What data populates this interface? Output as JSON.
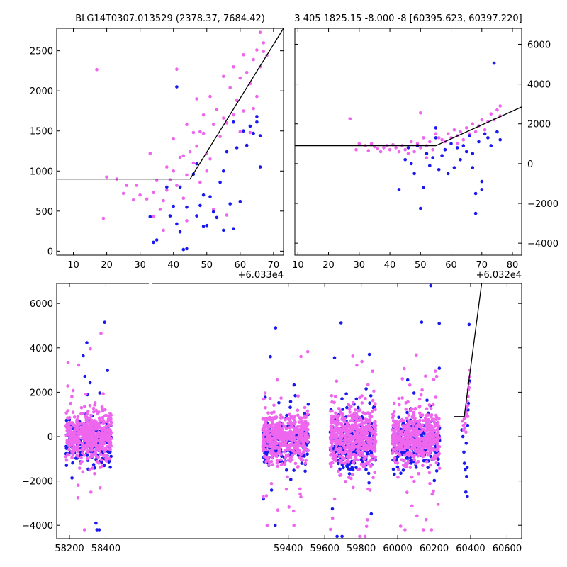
{
  "colors": {
    "pink": "#ee66ee",
    "blue": "#1a1aee",
    "fit": "#000000"
  },
  "chart_data": [
    {
      "id": "panel-a",
      "type": "scatter",
      "title": "BLG14T0307.013529 (2378.37, 7684.42)",
      "xlim": [
        5,
        73
      ],
      "ylim": [
        -50,
        2780
      ],
      "x_offset_label": "+6.033e4",
      "xticks": [
        10,
        20,
        30,
        40,
        50,
        60,
        70
      ],
      "yticks": [
        0,
        500,
        1000,
        1500,
        2000,
        2500
      ],
      "yaxis_side": "left",
      "fit_line": [
        [
          5,
          900
        ],
        [
          45,
          900
        ],
        [
          73,
          2780
        ]
      ],
      "series": [
        {
          "color_key": "pink",
          "points": [
            [
              17,
              2265
            ],
            [
              19,
              410
            ],
            [
              20,
              925
            ],
            [
              23,
              900
            ],
            [
              25,
              720
            ],
            [
              26,
              820
            ],
            [
              28,
              640
            ],
            [
              29,
              820
            ],
            [
              30,
              700
            ],
            [
              32,
              650
            ],
            [
              33,
              1220
            ],
            [
              34,
              730
            ],
            [
              35,
              880
            ],
            [
              36,
              520
            ],
            [
              37,
              630
            ],
            [
              38,
              1050
            ],
            [
              38,
              760
            ],
            [
              39,
              890
            ],
            [
              40,
              1000
            ],
            [
              40,
              1400
            ],
            [
              41,
              2270
            ],
            [
              41,
              820
            ],
            [
              42,
              1170
            ],
            [
              43,
              660
            ],
            [
              43,
              1190
            ],
            [
              44,
              950
            ],
            [
              44,
              1580
            ],
            [
              45,
              1240
            ],
            [
              46,
              1480
            ],
            [
              46,
              1100
            ],
            [
              47,
              1900
            ],
            [
              47,
              1310
            ],
            [
              48,
              1490
            ],
            [
              48,
              860
            ],
            [
              49,
              1700
            ],
            [
              49,
              1470
            ],
            [
              50,
              1220
            ],
            [
              50,
              1000
            ],
            [
              51,
              1930
            ],
            [
              51,
              1150
            ],
            [
              52,
              1580
            ],
            [
              53,
              1770
            ],
            [
              54,
              1430
            ],
            [
              55,
              1660
            ],
            [
              55,
              2180
            ],
            [
              56,
              1600
            ],
            [
              57,
              2040
            ],
            [
              58,
              2300
            ],
            [
              58,
              1700
            ],
            [
              59,
              1880
            ],
            [
              60,
              2160
            ],
            [
              60,
              1490
            ],
            [
              61,
              2450
            ],
            [
              61,
              1750
            ],
            [
              62,
              2230
            ],
            [
              63,
              2090
            ],
            [
              63,
              1480
            ],
            [
              64,
              2390
            ],
            [
              64,
              1780
            ],
            [
              65,
              2510
            ],
            [
              66,
              2300
            ],
            [
              66,
              2730
            ],
            [
              67,
              2490
            ],
            [
              67,
              2600
            ],
            [
              68,
              2440
            ],
            [
              34,
              430
            ],
            [
              37,
              260
            ],
            [
              44,
              380
            ],
            [
              52,
              520
            ],
            [
              56,
              450
            ],
            [
              60,
              620
            ],
            [
              62,
              1320
            ],
            [
              65,
              1930
            ]
          ]
        },
        {
          "color_key": "blue",
          "points": [
            [
              33,
              430
            ],
            [
              34,
              110
            ],
            [
              35,
              140
            ],
            [
              38,
              800
            ],
            [
              39,
              440
            ],
            [
              40,
              560
            ],
            [
              41,
              340
            ],
            [
              42,
              800
            ],
            [
              42,
              240
            ],
            [
              43,
              20
            ],
            [
              44,
              550
            ],
            [
              46,
              960
            ],
            [
              47,
              440
            ],
            [
              48,
              570
            ],
            [
              49,
              700
            ],
            [
              49,
              310
            ],
            [
              50,
              320
            ],
            [
              51,
              680
            ],
            [
              52,
              490
            ],
            [
              53,
              420
            ],
            [
              54,
              860
            ],
            [
              55,
              1000
            ],
            [
              56,
              1240
            ],
            [
              57,
              590
            ],
            [
              58,
              280
            ],
            [
              58,
              1610
            ],
            [
              59,
              1290
            ],
            [
              60,
              620
            ],
            [
              61,
              1500
            ],
            [
              62,
              1320
            ],
            [
              63,
              1560
            ],
            [
              64,
              1470
            ],
            [
              65,
              1680
            ],
            [
              65,
              1610
            ],
            [
              66,
              1050
            ],
            [
              66,
              1440
            ],
            [
              55,
              260
            ],
            [
              47,
              1090
            ],
            [
              41,
              2050
            ],
            [
              44,
              30
            ]
          ]
        }
      ]
    },
    {
      "id": "panel-b",
      "type": "scatter",
      "title": "3 405 1825.15 -8.000 -8 [60395.623, 60397.220]",
      "xlim": [
        9,
        83
      ],
      "ylim": [
        -4600,
        6800
      ],
      "x_offset_label": "+6.032e4",
      "xticks": [
        10,
        20,
        30,
        40,
        50,
        60,
        70,
        80
      ],
      "yticks": [
        -4000,
        -2000,
        0,
        2000,
        4000,
        6000
      ],
      "yaxis_side": "right",
      "fit_line": [
        [
          9,
          900
        ],
        [
          55,
          900
        ],
        [
          83,
          2850
        ]
      ],
      "series": [
        {
          "color_key": "pink",
          "points": [
            [
              27,
              2250
            ],
            [
              29,
              700
            ],
            [
              30,
              1000
            ],
            [
              32,
              900
            ],
            [
              33,
              650
            ],
            [
              34,
              1000
            ],
            [
              35,
              850
            ],
            [
              36,
              750
            ],
            [
              37,
              600
            ],
            [
              38,
              800
            ],
            [
              39,
              900
            ],
            [
              40,
              700
            ],
            [
              41,
              950
            ],
            [
              42,
              800
            ],
            [
              43,
              600
            ],
            [
              44,
              900
            ],
            [
              45,
              700
            ],
            [
              46,
              800
            ],
            [
              47,
              1100
            ],
            [
              48,
              600
            ],
            [
              49,
              1000
            ],
            [
              50,
              2550
            ],
            [
              50,
              800
            ],
            [
              51,
              1300
            ],
            [
              52,
              900
            ],
            [
              53,
              1100
            ],
            [
              54,
              700
            ],
            [
              55,
              1500
            ],
            [
              56,
              1300
            ],
            [
              57,
              1200
            ],
            [
              58,
              1100
            ],
            [
              59,
              1500
            ],
            [
              60,
              1300
            ],
            [
              61,
              1700
            ],
            [
              62,
              1400
            ],
            [
              63,
              1600
            ],
            [
              64,
              1200
            ],
            [
              65,
              1800
            ],
            [
              66,
              1500
            ],
            [
              67,
              2000
            ],
            [
              68,
              1600
            ],
            [
              69,
              1900
            ],
            [
              70,
              2200
            ],
            [
              71,
              1700
            ],
            [
              72,
              2100
            ],
            [
              73,
              2500
            ],
            [
              74,
              2200
            ],
            [
              75,
              2700
            ],
            [
              76,
              2900
            ],
            [
              76,
              2400
            ],
            [
              46,
              500
            ],
            [
              52,
              300
            ],
            [
              58,
              700
            ],
            [
              62,
              1000
            ]
          ]
        },
        {
          "color_key": "blue",
          "points": [
            [
              43,
              -1300
            ],
            [
              45,
              200
            ],
            [
              46,
              800
            ],
            [
              47,
              0
            ],
            [
              48,
              -500
            ],
            [
              49,
              900
            ],
            [
              50,
              -2250
            ],
            [
              51,
              -1200
            ],
            [
              52,
              500
            ],
            [
              53,
              -100
            ],
            [
              54,
              300
            ],
            [
              55,
              1300
            ],
            [
              56,
              -300
            ],
            [
              57,
              400
            ],
            [
              58,
              700
            ],
            [
              59,
              -500
            ],
            [
              60,
              1000
            ],
            [
              61,
              -200
            ],
            [
              62,
              800
            ],
            [
              63,
              200
            ],
            [
              64,
              900
            ],
            [
              65,
              600
            ],
            [
              66,
              1400
            ],
            [
              67,
              -200
            ],
            [
              68,
              -1500
            ],
            [
              68,
              -2500
            ],
            [
              69,
              1100
            ],
            [
              70,
              -900
            ],
            [
              70,
              -1300
            ],
            [
              71,
              1500
            ],
            [
              72,
              1300
            ],
            [
              73,
              900
            ],
            [
              74,
              5050
            ],
            [
              75,
              1600
            ],
            [
              76,
              1200
            ],
            [
              67,
              500
            ],
            [
              55,
              1800
            ]
          ]
        }
      ]
    },
    {
      "id": "panel-c",
      "type": "scatter",
      "title": "",
      "xlim": [
        58130,
        60680
      ],
      "ylim": [
        -4600,
        6900
      ],
      "xticks": [
        58200,
        58400,
        59400,
        59600,
        59800,
        60000,
        60200,
        60400,
        60600
      ],
      "yticks": [
        -4000,
        -2000,
        0,
        2000,
        4000,
        6000
      ],
      "yaxis_side": "left",
      "axis_break": {
        "from": 58450,
        "to": 59230
      },
      "fit_line": [
        [
          60310,
          900
        ],
        [
          60365,
          900
        ],
        [
          60470,
          7500
        ]
      ],
      "seasons": [
        {
          "x": [
            58180,
            58430
          ],
          "ymin": -4200,
          "ymax": 5400,
          "core_sd": 500,
          "n_pink": 520,
          "n_blue": 230
        },
        {
          "x": [
            59260,
            59510
          ],
          "ymin": -4000,
          "ymax": 4900,
          "core_sd": 520,
          "n_pink": 520,
          "n_blue": 230
        },
        {
          "x": [
            59630,
            59880
          ],
          "ymin": -4500,
          "ymax": 6400,
          "core_sd": 620,
          "n_pink": 560,
          "n_blue": 260
        },
        {
          "x": [
            59970,
            60230
          ],
          "ymin": -4200,
          "ymax": 6800,
          "core_sd": 560,
          "n_pink": 540,
          "n_blue": 250
        }
      ],
      "event_points": {
        "x": [
          60350,
          60400
        ],
        "pink": [
          [
            60355,
            700
          ],
          [
            60360,
            500
          ],
          [
            60365,
            800
          ],
          [
            60370,
            600
          ],
          [
            60372,
            900
          ],
          [
            60375,
            1100
          ],
          [
            60378,
            1000
          ],
          [
            60380,
            1300
          ],
          [
            60382,
            1600
          ],
          [
            60384,
            1400
          ],
          [
            60386,
            1800
          ],
          [
            60388,
            2100
          ],
          [
            60390,
            2400
          ],
          [
            60392,
            2200
          ],
          [
            60394,
            2700
          ],
          [
            60396,
            3000
          ],
          [
            60375,
            200
          ],
          [
            60368,
            400
          ],
          [
            60385,
            900
          ],
          [
            60362,
            300
          ]
        ],
        "blue": [
          [
            60352,
            300
          ],
          [
            60358,
            0
          ],
          [
            60363,
            -700
          ],
          [
            60366,
            -1200
          ],
          [
            60370,
            -1500
          ],
          [
            60374,
            -2500
          ],
          [
            60378,
            -1800
          ],
          [
            60381,
            -1400
          ],
          [
            60384,
            500
          ],
          [
            60386,
            1200
          ],
          [
            60388,
            1500
          ],
          [
            60392,
            5050
          ],
          [
            60395,
            2500
          ],
          [
            60382,
            -2700
          ],
          [
            60376,
            -300
          ]
        ]
      }
    }
  ]
}
